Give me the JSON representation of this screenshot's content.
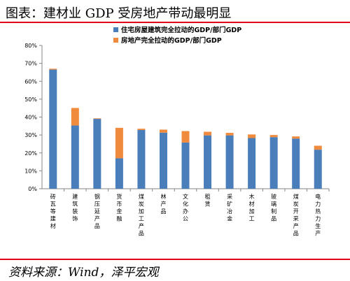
{
  "header": {
    "title": "图表：建材业 GDP 受房地产带动最明显"
  },
  "footer": {
    "source": "资料来源：Wind，泽平宏观"
  },
  "colors": {
    "housing": "#4a7ebb",
    "real_estate": "#f08a3c",
    "rule": "#e2001a",
    "axis": "#868686"
  },
  "chart_data": {
    "type": "bar",
    "stacked": true,
    "categories": [
      "砖瓦等建材",
      "建筑装饰",
      "钢压延产品",
      "货币金融",
      "煤炭加工产品",
      "林产品",
      "文化办公",
      "租赁",
      "采矿冶金",
      "木材加工",
      "玻璃制品",
      "煤炭开采产品",
      "电力热力生产"
    ],
    "series": [
      {
        "name": "住宅房屋建筑完全拉动的GDP/部门GDP",
        "values": [
          66.5,
          35.3,
          39.0,
          17.0,
          32.8,
          31.3,
          25.8,
          29.8,
          29.8,
          28.3,
          28.8,
          28.0,
          21.8
        ]
      },
      {
        "name": "房地产完全拉动的GDP/部门GDP",
        "values": [
          0.5,
          9.8,
          0.3,
          17.0,
          0.7,
          1.7,
          6.4,
          2.0,
          1.4,
          2.0,
          1.2,
          1.2,
          2.2
        ]
      }
    ],
    "ylim": [
      0,
      80
    ],
    "yticks": [
      "0%",
      "10%",
      "20%",
      "30%",
      "40%",
      "50%",
      "60%",
      "70%",
      "80%"
    ],
    "legend_position": "top-right",
    "grid": false
  }
}
